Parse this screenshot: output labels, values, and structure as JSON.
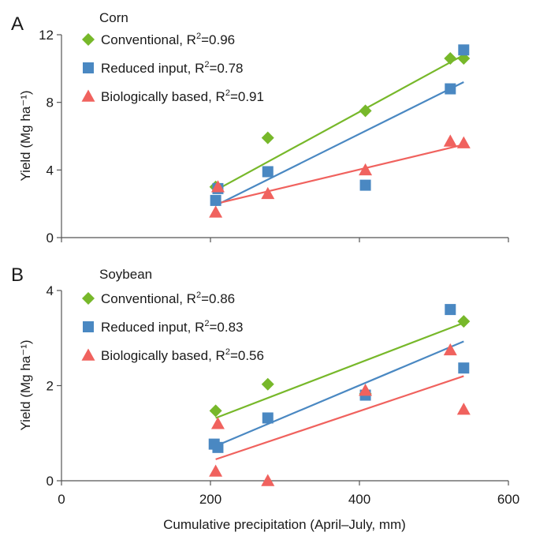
{
  "colors": {
    "conventional": "#77B82A",
    "reduced_input": "#4A88C2",
    "biologically_based": "#F0625E"
  },
  "xlabel": "Cumulative precipitation (April–July, mm)",
  "x_ticks": [
    "0",
    "200",
    "400",
    "600"
  ],
  "chart_data": [
    {
      "type": "scatter",
      "panel": "A",
      "title": "Corn",
      "ylabel": "Yield (Mg ha⁻¹)",
      "xlim": [
        0,
        600
      ],
      "ylim": [
        0,
        12
      ],
      "y_ticks": [
        "0",
        "4",
        "8",
        "12"
      ],
      "grid": false,
      "legend": "top-left",
      "series": [
        {
          "name": "Conventional, R",
          "r2_value": "=0.96",
          "marker": "diamond",
          "color_key": "conventional",
          "points": [
            [
              207,
              3.0
            ],
            [
              277,
              5.9
            ],
            [
              408,
              7.5
            ],
            [
              522,
              10.6
            ],
            [
              540,
              10.6
            ]
          ],
          "fit": [
            [
              207,
              2.8
            ],
            [
              540,
              10.8
            ]
          ]
        },
        {
          "name": "Reduced input, R",
          "r2_value": "=0.78",
          "marker": "square",
          "color_key": "reduced_input",
          "points": [
            [
              207,
              2.2
            ],
            [
              210,
              2.9
            ],
            [
              277,
              3.9
            ],
            [
              408,
              3.1
            ],
            [
              522,
              8.8
            ],
            [
              540,
              11.1
            ]
          ],
          "fit": [
            [
              207,
              1.9
            ],
            [
              540,
              9.2
            ]
          ]
        },
        {
          "name": "Biologically based, R",
          "r2_value": "=0.91",
          "marker": "triangle",
          "color_key": "biologically_based",
          "points": [
            [
              207,
              1.5
            ],
            [
              210,
              3.0
            ],
            [
              277,
              2.6
            ],
            [
              408,
              4.0
            ],
            [
              522,
              5.7
            ],
            [
              540,
              5.6
            ]
          ],
          "fit": [
            [
              207,
              2.0
            ],
            [
              540,
              5.5
            ]
          ]
        }
      ]
    },
    {
      "type": "scatter",
      "panel": "B",
      "title": "Soybean",
      "ylabel": "Yield (Mg ha⁻¹)",
      "xlim": [
        0,
        600
      ],
      "ylim": [
        0,
        4
      ],
      "y_ticks": [
        "0",
        "2",
        "4"
      ],
      "grid": false,
      "legend": "top-left",
      "series": [
        {
          "name": "Conventional, R",
          "r2_value": "=0.86",
          "marker": "diamond",
          "color_key": "conventional",
          "points": [
            [
              207,
              1.47
            ],
            [
              277,
              2.03
            ],
            [
              408,
              1.83
            ],
            [
              540,
              3.35
            ]
          ],
          "fit": [
            [
              207,
              1.32
            ],
            [
              540,
              3.32
            ]
          ]
        },
        {
          "name": "Reduced input, R",
          "r2_value": "=0.83",
          "marker": "square",
          "color_key": "reduced_input",
          "points": [
            [
              205,
              0.77
            ],
            [
              210,
              0.7
            ],
            [
              277,
              1.32
            ],
            [
              408,
              1.8
            ],
            [
              522,
              3.6
            ],
            [
              540,
              2.37
            ]
          ],
          "fit": [
            [
              207,
              0.73
            ],
            [
              540,
              2.93
            ]
          ]
        },
        {
          "name": "Biologically based, R",
          "r2_value": "=0.56",
          "marker": "triangle",
          "color_key": "biologically_based",
          "points": [
            [
              207,
              0.2
            ],
            [
              210,
              1.2
            ],
            [
              277,
              0.0
            ],
            [
              408,
              1.9
            ],
            [
              522,
              2.75
            ],
            [
              540,
              1.5
            ]
          ],
          "fit": [
            [
              207,
              0.45
            ],
            [
              540,
              2.2
            ]
          ]
        }
      ]
    }
  ]
}
